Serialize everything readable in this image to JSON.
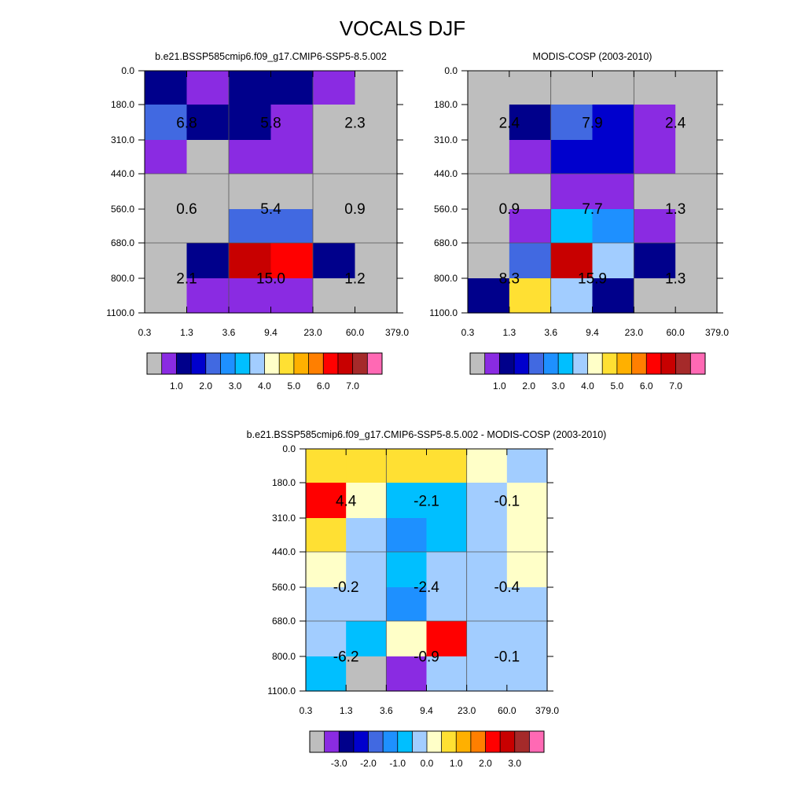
{
  "title": "VOCALS DJF",
  "colors": {
    "palette": [
      "#bebebe",
      "#8a2be2",
      "#00008b",
      "#0000cd",
      "#4169e1",
      "#1e90ff",
      "#00bfff",
      "#a2cdff",
      "#ffffc8",
      "#ffe033",
      "#ffb000",
      "#ff7f00",
      "#ff0000",
      "#c80000",
      "#a52a2a",
      "#ff69b4"
    ]
  },
  "chart_data": [
    {
      "type": "heatmap",
      "title": "b.e21.BSSP585cmip6.f09_g17.CMIP6-SSP5-8.5.002",
      "x_ticks": [
        "0.3",
        "1.3",
        "3.6",
        "9.4",
        "23.0",
        "60.0",
        "379.0"
      ],
      "y_ticks": [
        "0.0",
        "180.0",
        "310.0",
        "440.0",
        "560.0",
        "680.0",
        "800.0",
        "1100.0"
      ],
      "cell_colors": [
        [
          2,
          1,
          2,
          2,
          1,
          0
        ],
        [
          4,
          2,
          2,
          1,
          0,
          0
        ],
        [
          1,
          0,
          1,
          1,
          0,
          0
        ],
        [
          0,
          0,
          0,
          0,
          0,
          0
        ],
        [
          0,
          0,
          4,
          4,
          0,
          0
        ],
        [
          0,
          2,
          13,
          12,
          2,
          0
        ],
        [
          0,
          1,
          1,
          1,
          0,
          0
        ]
      ],
      "block_labels": [
        [
          "6.8",
          "5.8",
          "2.3"
        ],
        [
          "0.6",
          "5.4",
          "0.9"
        ],
        [
          "2.1",
          "15.0",
          "1.2"
        ]
      ],
      "colorbar_ticks": [
        "1.0",
        "2.0",
        "3.0",
        "4.0",
        "5.0",
        "6.0",
        "7.0"
      ]
    },
    {
      "type": "heatmap",
      "title": "MODIS-COSP (2003-2010)",
      "x_ticks": [
        "0.3",
        "1.3",
        "3.6",
        "9.4",
        "23.0",
        "60.0",
        "379.0"
      ],
      "y_ticks": [
        "0.0",
        "180.0",
        "310.0",
        "440.0",
        "560.0",
        "680.0",
        "800.0",
        "1100.0"
      ],
      "cell_colors": [
        [
          0,
          0,
          0,
          0,
          0,
          0
        ],
        [
          0,
          2,
          4,
          3,
          1,
          0
        ],
        [
          0,
          1,
          3,
          3,
          1,
          0
        ],
        [
          0,
          0,
          1,
          1,
          0,
          0
        ],
        [
          0,
          1,
          6,
          5,
          1,
          0
        ],
        [
          0,
          4,
          13,
          7,
          2,
          0
        ],
        [
          2,
          9,
          7,
          2,
          0,
          0
        ]
      ],
      "block_labels": [
        [
          "2.4",
          "7.9",
          "2.4"
        ],
        [
          "0.9",
          "7.7",
          "1.3"
        ],
        [
          "8.3",
          "15.9",
          "1.3"
        ]
      ],
      "colorbar_ticks": [
        "1.0",
        "2.0",
        "3.0",
        "4.0",
        "5.0",
        "6.0",
        "7.0"
      ]
    },
    {
      "type": "heatmap",
      "title": "b.e21.BSSP585cmip6.f09_g17.CMIP6-SSP5-8.5.002 - MODIS-COSP (2003-2010)",
      "x_ticks": [
        "0.3",
        "1.3",
        "3.6",
        "9.4",
        "23.0",
        "60.0",
        "379.0"
      ],
      "y_ticks": [
        "0.0",
        "180.0",
        "310.0",
        "440.0",
        "560.0",
        "680.0",
        "800.0",
        "1100.0"
      ],
      "cell_colors": [
        [
          9,
          9,
          9,
          9,
          8,
          7
        ],
        [
          12,
          8,
          6,
          6,
          7,
          8
        ],
        [
          9,
          7,
          5,
          6,
          7,
          8
        ],
        [
          8,
          7,
          6,
          7,
          7,
          8
        ],
        [
          7,
          7,
          5,
          7,
          7,
          7
        ],
        [
          7,
          6,
          8,
          12,
          7,
          7
        ],
        [
          6,
          0,
          1,
          7,
          7,
          7
        ]
      ],
      "block_labels": [
        [
          "4.4",
          "-2.1",
          "-0.1"
        ],
        [
          "-0.2",
          "-2.4",
          "-0.4"
        ],
        [
          "-6.2",
          "-0.9",
          "-0.1"
        ]
      ],
      "colorbar_ticks": [
        "-3.0",
        "-2.0",
        "-1.0",
        "0.0",
        "1.0",
        "2.0",
        "3.0"
      ]
    }
  ]
}
